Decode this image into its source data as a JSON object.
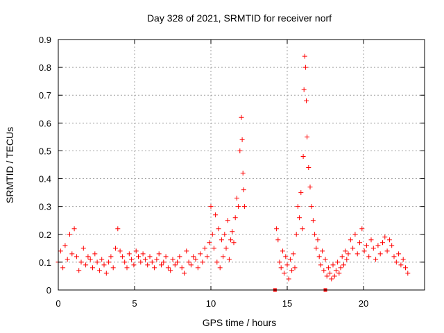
{
  "chart_data": {
    "type": "scatter",
    "title": "Day 328 of 2021, SRMTID for receiver norf",
    "xlabel": "GPS time / hours",
    "ylabel": "SRMTID / TECUs",
    "xlim": [
      0,
      24
    ],
    "ylim": [
      0,
      0.9
    ],
    "xticks": [
      0,
      5,
      10,
      15,
      20
    ],
    "xtick_labels": [
      "0",
      "5",
      "10",
      "15",
      "20"
    ],
    "yticks": [
      0,
      0.1,
      0.2,
      0.3,
      0.4,
      0.5,
      0.6,
      0.7,
      0.8,
      0.9
    ],
    "ytick_labels": [
      "0",
      "0.1",
      "0.2",
      "0.3",
      "0.4",
      "0.5",
      "0.6",
      "0.7",
      "0.8",
      "0.9"
    ],
    "grid": true,
    "marker": "+",
    "color": "#ff0000",
    "series": [
      {
        "name": "SRMTID",
        "x": [
          0.0,
          0.15,
          0.3,
          0.45,
          0.6,
          0.75,
          0.9,
          1.05,
          1.2,
          1.35,
          1.5,
          1.65,
          1.8,
          1.95,
          2.1,
          2.25,
          2.4,
          2.55,
          2.7,
          2.85,
          3.0,
          3.15,
          3.3,
          3.45,
          3.6,
          3.75,
          3.9,
          4.05,
          4.2,
          4.35,
          4.5,
          4.65,
          4.8,
          4.95,
          5.1,
          5.25,
          5.4,
          5.55,
          5.7,
          5.85,
          6.0,
          6.15,
          6.3,
          6.45,
          6.6,
          6.75,
          6.9,
          7.05,
          7.2,
          7.35,
          7.5,
          7.65,
          7.8,
          7.95,
          8.1,
          8.25,
          8.4,
          8.55,
          8.7,
          8.85,
          9.0,
          9.15,
          9.3,
          9.45,
          9.6,
          9.75,
          9.9,
          10.0,
          10.1,
          10.2,
          10.3,
          10.4,
          10.5,
          10.6,
          10.7,
          10.8,
          10.9,
          11.0,
          11.1,
          11.2,
          11.3,
          11.4,
          11.5,
          11.6,
          11.7,
          11.8,
          11.9,
          12.0,
          12.05,
          12.1,
          12.15,
          12.2,
          14.3,
          14.4,
          14.5,
          14.6,
          14.7,
          14.8,
          14.9,
          15.0,
          15.1,
          15.2,
          15.3,
          15.4,
          15.5,
          15.6,
          15.7,
          15.8,
          15.9,
          16.0,
          16.05,
          16.1,
          16.15,
          16.2,
          16.25,
          16.3,
          16.4,
          16.5,
          16.6,
          16.7,
          16.8,
          16.9,
          17.0,
          17.1,
          17.2,
          17.3,
          17.4,
          17.5,
          17.6,
          17.7,
          17.8,
          17.9,
          18.0,
          18.1,
          18.2,
          18.3,
          18.4,
          18.5,
          18.6,
          18.7,
          18.8,
          18.9,
          19.0,
          19.15,
          19.3,
          19.45,
          19.6,
          19.75,
          19.9,
          20.05,
          20.2,
          20.35,
          20.5,
          20.65,
          20.8,
          20.95,
          21.1,
          21.25,
          21.4,
          21.55,
          21.7,
          21.85,
          22.0,
          22.15,
          22.3,
          22.45,
          22.6,
          22.75,
          22.9
        ],
        "y": [
          0.1,
          0.14,
          0.08,
          0.16,
          0.11,
          0.2,
          0.13,
          0.22,
          0.12,
          0.07,
          0.1,
          0.15,
          0.09,
          0.12,
          0.11,
          0.08,
          0.13,
          0.1,
          0.07,
          0.11,
          0.09,
          0.06,
          0.1,
          0.12,
          0.08,
          0.15,
          0.22,
          0.14,
          0.12,
          0.1,
          0.08,
          0.13,
          0.11,
          0.09,
          0.14,
          0.12,
          0.1,
          0.13,
          0.11,
          0.09,
          0.12,
          0.1,
          0.08,
          0.11,
          0.13,
          0.09,
          0.1,
          0.12,
          0.08,
          0.07,
          0.11,
          0.09,
          0.1,
          0.12,
          0.08,
          0.06,
          0.14,
          0.1,
          0.09,
          0.12,
          0.11,
          0.08,
          0.13,
          0.1,
          0.15,
          0.12,
          0.17,
          0.3,
          0.2,
          0.15,
          0.27,
          0.1,
          0.22,
          0.08,
          0.18,
          0.12,
          0.2,
          0.15,
          0.25,
          0.11,
          0.18,
          0.21,
          0.17,
          0.26,
          0.33,
          0.3,
          0.5,
          0.62,
          0.54,
          0.42,
          0.36,
          0.3,
          0.22,
          0.18,
          0.1,
          0.08,
          0.14,
          0.06,
          0.12,
          0.09,
          0.04,
          0.11,
          0.07,
          0.13,
          0.08,
          0.2,
          0.3,
          0.26,
          0.35,
          0.22,
          0.48,
          0.72,
          0.84,
          0.8,
          0.68,
          0.55,
          0.44,
          0.37,
          0.3,
          0.25,
          0.2,
          0.15,
          0.18,
          0.12,
          0.09,
          0.14,
          0.07,
          0.11,
          0.05,
          0.08,
          0.06,
          0.04,
          0.09,
          0.05,
          0.07,
          0.1,
          0.06,
          0.08,
          0.12,
          0.09,
          0.14,
          0.11,
          0.13,
          0.18,
          0.15,
          0.2,
          0.13,
          0.17,
          0.22,
          0.14,
          0.16,
          0.12,
          0.18,
          0.15,
          0.11,
          0.16,
          0.13,
          0.17,
          0.19,
          0.14,
          0.18,
          0.16,
          0.12,
          0.1,
          0.13,
          0.09,
          0.11,
          0.08,
          0.06
        ]
      }
    ],
    "extra_points": [
      {
        "x": 14.2,
        "y": 0.0
      },
      {
        "x": 17.5,
        "y": 0.0
      }
    ]
  }
}
